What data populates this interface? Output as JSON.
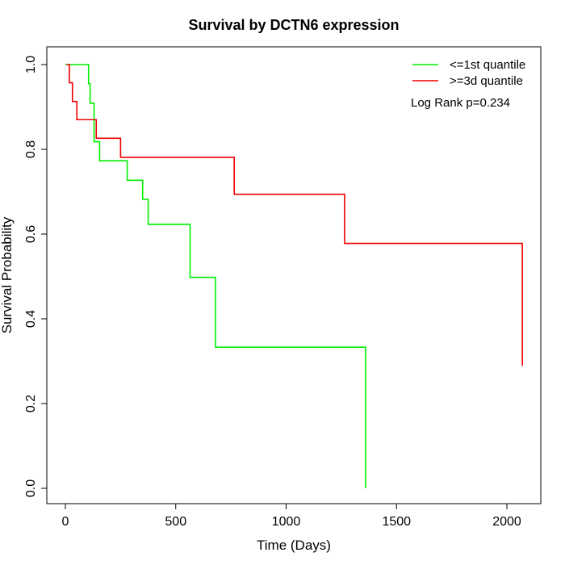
{
  "chart_data": {
    "type": "line",
    "step": true,
    "title": "Survival by DCTN6 expression",
    "xlabel": "Time (Days)",
    "ylabel": "Survival Probability",
    "xlim": [
      0,
      2070
    ],
    "ylim": [
      0,
      1.0
    ],
    "xticks": [
      0,
      500,
      1000,
      1500,
      2000
    ],
    "yticks": [
      0.0,
      0.2,
      0.4,
      0.6,
      0.8,
      1.0
    ],
    "xtick_labels": [
      "0",
      "500",
      "1000",
      "1500",
      "2000"
    ],
    "ytick_labels": [
      "0.0",
      "0.2",
      "0.4",
      "0.6",
      "0.8",
      "1.0"
    ],
    "grid": false,
    "legend_position": "top-right",
    "annotation": "Log Rank p=0.234",
    "series": [
      {
        "name": "<=1st quantile",
        "color": "#00ee00",
        "x": [
          0,
          105,
          112,
          130,
          155,
          280,
          350,
          375,
          565,
          680,
          1360,
          1360
        ],
        "y": [
          1.0,
          0.955,
          0.909,
          0.818,
          0.773,
          0.727,
          0.682,
          0.623,
          0.498,
          0.333,
          0.333,
          0.0
        ]
      },
      {
        "name": ">=3d quantile",
        "color": "#ee0000",
        "x": [
          5,
          18,
          32,
          52,
          140,
          250,
          555,
          765,
          1265,
          2070
        ],
        "y": [
          1.0,
          0.957,
          0.913,
          0.87,
          0.826,
          0.781,
          0.781,
          0.694,
          0.578,
          0.289
        ]
      }
    ]
  }
}
